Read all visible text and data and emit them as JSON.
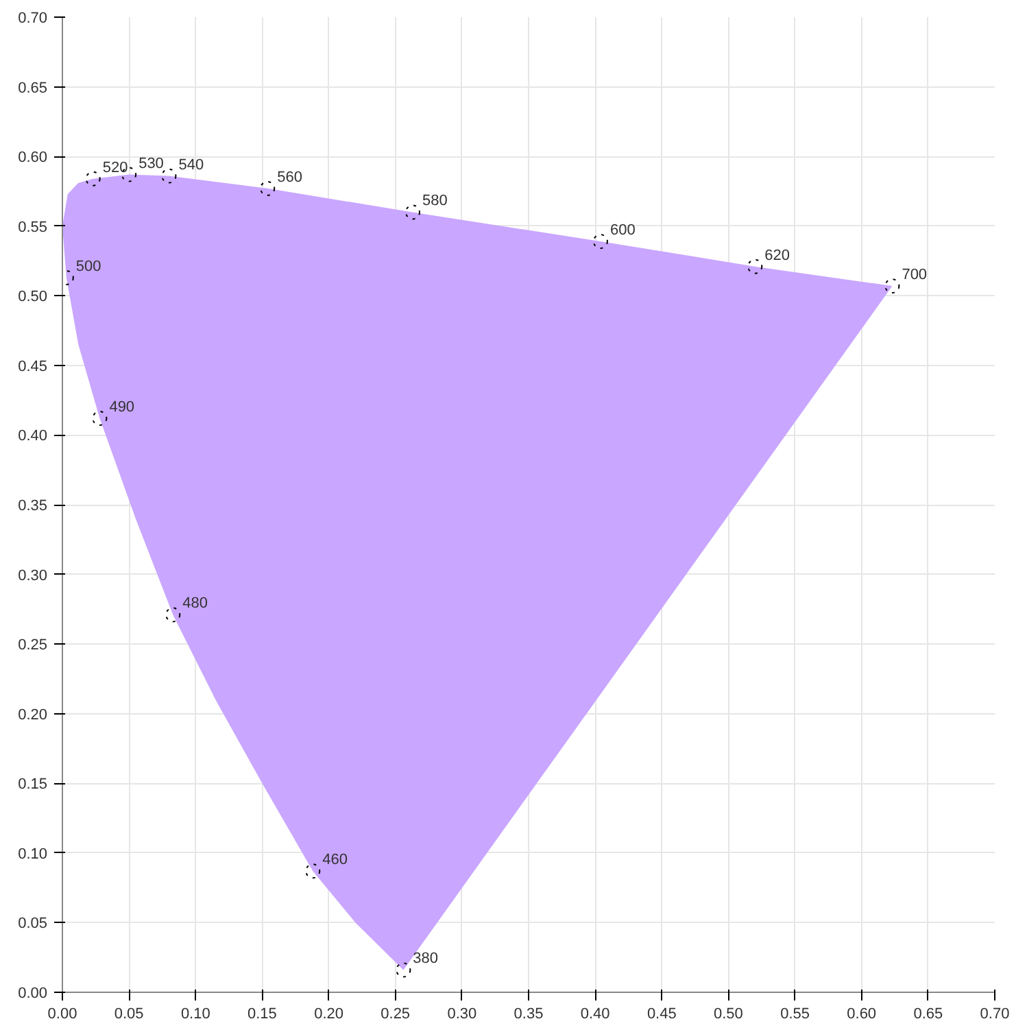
{
  "chart_data": {
    "type": "scatter",
    "x": [
      0.256,
      0.188,
      0.083,
      0.028,
      0.003,
      0.023,
      0.05,
      0.08,
      0.154,
      0.263,
      0.404,
      0.52,
      0.623
    ],
    "series": [
      {
        "type": "area",
        "color": "#c9a6ff",
        "x": [
          0.256,
          0.22,
          0.188,
          0.15,
          0.115,
          0.083,
          0.055,
          0.028,
          0.012,
          0.003,
          0.0,
          0.004,
          0.012,
          0.023,
          0.05,
          0.08,
          0.154,
          0.263,
          0.404,
          0.52,
          0.623,
          0.256
        ],
        "values": [
          0.016,
          0.05,
          0.087,
          0.15,
          0.21,
          0.271,
          0.34,
          0.412,
          0.465,
          0.513,
          0.55,
          0.573,
          0.581,
          0.584,
          0.587,
          0.586,
          0.577,
          0.56,
          0.539,
          0.521,
          0.507,
          0.016
        ]
      },
      {
        "color": "#000000",
        "marker": "circle",
        "values": [
          0.016,
          0.087,
          0.271,
          0.412,
          0.513,
          0.584,
          0.587,
          0.586,
          0.577,
          0.56,
          0.539,
          0.521,
          0.507
        ]
      }
    ],
    "line_style": "dotted",
    "annotations": [
      {
        "text": "380",
        "x": 0.256,
        "y": 0.016
      },
      {
        "text": "460",
        "x": 0.188,
        "y": 0.087
      },
      {
        "text": "480",
        "x": 0.083,
        "y": 0.271
      },
      {
        "text": "490",
        "x": 0.028,
        "y": 0.412
      },
      {
        "text": "500",
        "x": 0.003,
        "y": 0.513
      },
      {
        "text": "520",
        "x": 0.023,
        "y": 0.584
      },
      {
        "text": "530",
        "x": 0.05,
        "y": 0.587
      },
      {
        "text": "540",
        "x": 0.08,
        "y": 0.586
      },
      {
        "text": "560",
        "x": 0.154,
        "y": 0.577
      },
      {
        "text": "580",
        "x": 0.263,
        "y": 0.56
      },
      {
        "text": "600",
        "x": 0.404,
        "y": 0.539
      },
      {
        "text": "620",
        "x": 0.52,
        "y": 0.521
      },
      {
        "text": "700",
        "x": 0.623,
        "y": 0.507
      }
    ],
    "xlim": [
      0,
      0.7
    ],
    "ylim": [
      0,
      0.7
    ],
    "xticks": [
      {
        "value": 0,
        "label": "0.00"
      },
      {
        "value": 0.05,
        "label": "0.05"
      },
      {
        "value": 0.1,
        "label": "0.10"
      },
      {
        "value": 0.15,
        "label": "0.15"
      },
      {
        "value": 0.2,
        "label": "0.20"
      },
      {
        "value": 0.25,
        "label": "0.25"
      },
      {
        "value": 0.3,
        "label": "0.30"
      },
      {
        "value": 0.35,
        "label": "0.35"
      },
      {
        "value": 0.4,
        "label": "0.40"
      },
      {
        "value": 0.45,
        "label": "0.45"
      },
      {
        "value": 0.5,
        "label": "0.50"
      },
      {
        "value": 0.55,
        "label": "0.55"
      },
      {
        "value": 0.6,
        "label": "0.60"
      },
      {
        "value": 0.65,
        "label": "0.65"
      },
      {
        "value": 0.7,
        "label": "0.70"
      }
    ],
    "yticks": [
      {
        "value": 0,
        "label": "0.00"
      },
      {
        "value": 0.05,
        "label": "0.05"
      },
      {
        "value": 0.1,
        "label": "0.10"
      },
      {
        "value": 0.15,
        "label": "0.15"
      },
      {
        "value": 0.2,
        "label": "0.20"
      },
      {
        "value": 0.25,
        "label": "0.25"
      },
      {
        "value": 0.3,
        "label": "0.30"
      },
      {
        "value": 0.35,
        "label": "0.35"
      },
      {
        "value": 0.4,
        "label": "0.40"
      },
      {
        "value": 0.45,
        "label": "0.45"
      },
      {
        "value": 0.5,
        "label": "0.50"
      },
      {
        "value": 0.55,
        "label": "0.55"
      },
      {
        "value": 0.6,
        "label": "0.60"
      },
      {
        "value": 0.65,
        "label": "0.65"
      },
      {
        "value": 0.7,
        "label": "0.70"
      }
    ],
    "grid": true
  }
}
